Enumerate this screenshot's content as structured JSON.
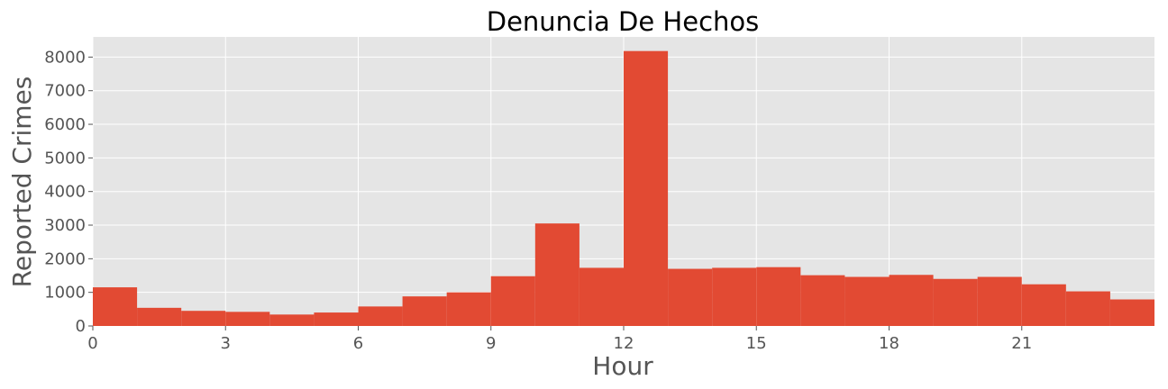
{
  "chart_data": {
    "type": "bar",
    "title": "Denuncia De Hechos",
    "xlabel": "Hour",
    "ylabel": "Reported Crimes",
    "x_bins": [
      0,
      1,
      2,
      3,
      4,
      5,
      6,
      7,
      8,
      9,
      10,
      11,
      12,
      13,
      14,
      15,
      16,
      17,
      18,
      19,
      20,
      21,
      22,
      23
    ],
    "bin_width": 1,
    "values": [
      1150,
      540,
      450,
      420,
      340,
      400,
      580,
      880,
      1000,
      1480,
      3050,
      1730,
      8180,
      1700,
      1730,
      1750,
      1510,
      1460,
      1520,
      1400,
      1460,
      1240,
      1030,
      790
    ],
    "xlim": [
      0,
      24
    ],
    "ylim": [
      0,
      8600
    ],
    "xticks": [
      0,
      3,
      6,
      9,
      12,
      15,
      18,
      21
    ],
    "yticks": [
      0,
      1000,
      2000,
      3000,
      4000,
      5000,
      6000,
      7000,
      8000
    ],
    "bar_color": "#E24A33",
    "background_color": "#E5E5E5",
    "grid": true,
    "style": "ggplot"
  }
}
